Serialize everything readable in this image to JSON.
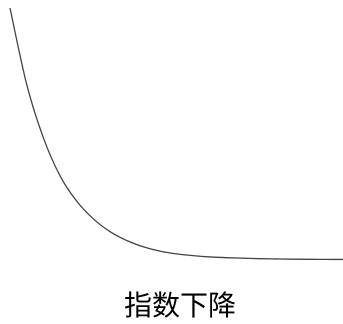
{
  "chart_data": {
    "type": "line",
    "caption": "指数下降",
    "line_color": "#444444",
    "grid": false,
    "legend": "none",
    "series": [
      {
        "x": [
          0,
          0.5,
          1,
          1.5,
          2,
          2.5,
          3,
          3.5,
          4,
          4.5,
          5,
          5.5,
          6,
          6.5,
          7,
          7.5,
          8,
          8.5,
          9,
          9.5,
          10
        ],
        "values": [
          1.0,
          0.7,
          0.49,
          0.34,
          0.24,
          0.17,
          0.12,
          0.085,
          0.06,
          0.043,
          0.032,
          0.025,
          0.02,
          0.017,
          0.015,
          0.013,
          0.012,
          0.011,
          0.0105,
          0.0102,
          0.01
        ]
      }
    ],
    "xlim": [
      0,
      10
    ],
    "ylim": [
      0,
      1
    ]
  }
}
